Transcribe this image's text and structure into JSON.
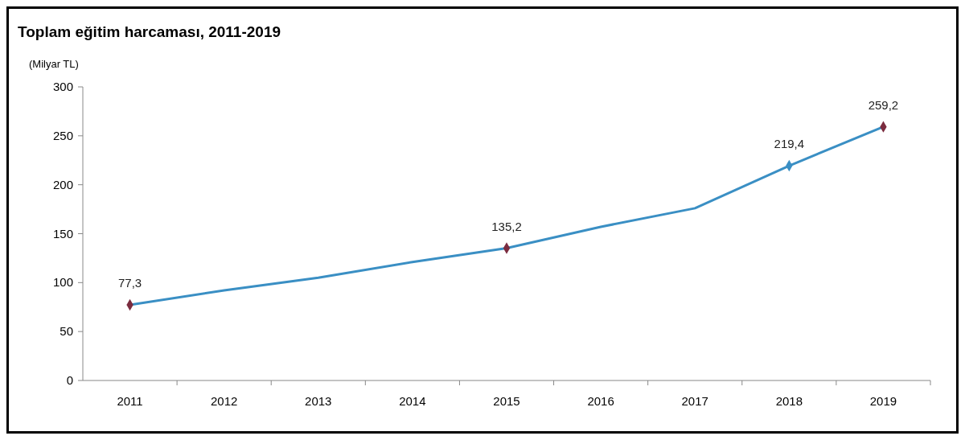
{
  "chart_data": {
    "type": "line",
    "title": "Toplam eğitim harcaması, 2011-2019",
    "ylabel": "(Milyar TL)",
    "categories": [
      "2011",
      "2012",
      "2013",
      "2014",
      "2015",
      "2016",
      "2017",
      "2018",
      "2019"
    ],
    "ylim": [
      0,
      300
    ],
    "yticks": [
      0,
      50,
      100,
      150,
      200,
      250,
      300
    ],
    "grid": false,
    "series": [
      {
        "color": "#3a8fc4",
        "values": [
          77.3,
          92,
          105,
          121,
          135.2,
          157,
          176,
          219.4,
          259.2
        ],
        "value_labels": [
          "77,3",
          null,
          null,
          null,
          "135,2",
          null,
          null,
          "219,4",
          "259,2"
        ]
      },
      {
        "type": "scatter",
        "marker": "diamond",
        "values": [
          77.3,
          null,
          null,
          null,
          135.2,
          null,
          null,
          219.4,
          259.2
        ],
        "colors": [
          "#7b2c3f",
          null,
          null,
          null,
          "#7b2c3f",
          null,
          null,
          "#3a8fc4",
          "#7b2c3f"
        ]
      }
    ]
  }
}
